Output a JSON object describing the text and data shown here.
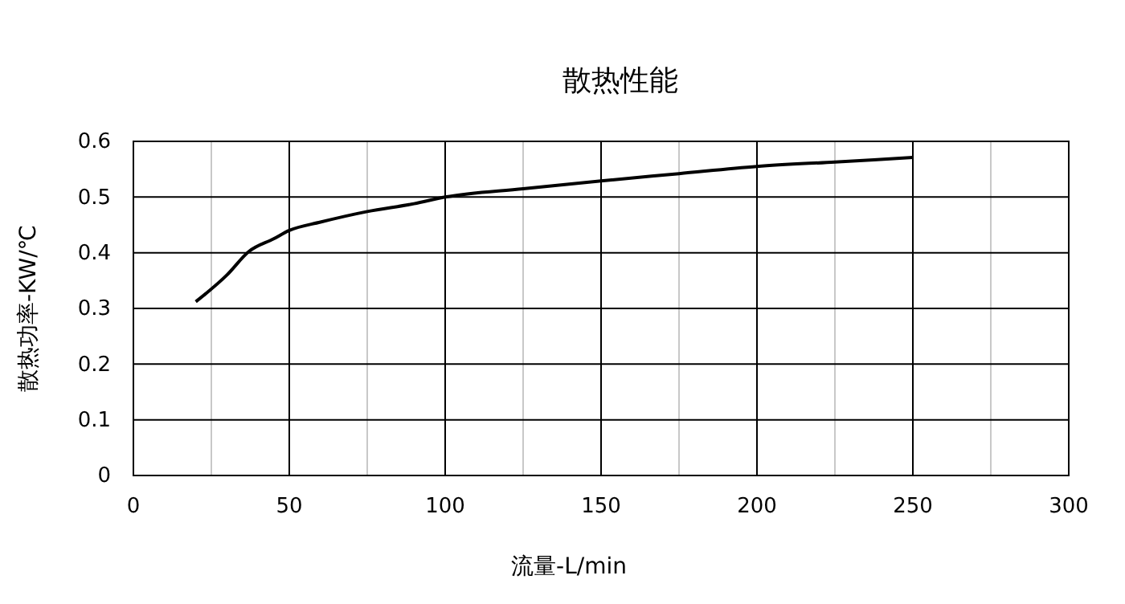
{
  "chart_data": {
    "type": "line",
    "title": "散热性能",
    "xlabel": "流量-L/min",
    "ylabel": "散热功率-KW/℃",
    "x": [
      20,
      30,
      37,
      45,
      50,
      60,
      75,
      90,
      100,
      125,
      150,
      175,
      200,
      225,
      250
    ],
    "series": [
      {
        "color": "#000000",
        "values": [
          0.312,
          0.36,
          0.402,
          0.425,
          0.44,
          0.455,
          0.474,
          0.488,
          0.5,
          0.515,
          0.529,
          0.542,
          0.555,
          0.563,
          0.571
        ]
      }
    ],
    "xlim": [
      0,
      300
    ],
    "ylim": [
      0,
      0.6
    ],
    "xticks": [
      0,
      {
        "value": 25,
        "label": null
      },
      50,
      {
        "value": 75,
        "label": null
      },
      100,
      {
        "value": 125,
        "label": null
      },
      150,
      {
        "value": 175,
        "label": null
      },
      200,
      {
        "value": 225,
        "label": null
      },
      250,
      {
        "value": 275,
        "label": null
      },
      300
    ],
    "yticks": [
      0,
      0.1,
      0.2,
      0.3,
      0.4,
      0.5,
      0.6
    ],
    "grid": true,
    "marker": "none",
    "line_style": "solid"
  }
}
